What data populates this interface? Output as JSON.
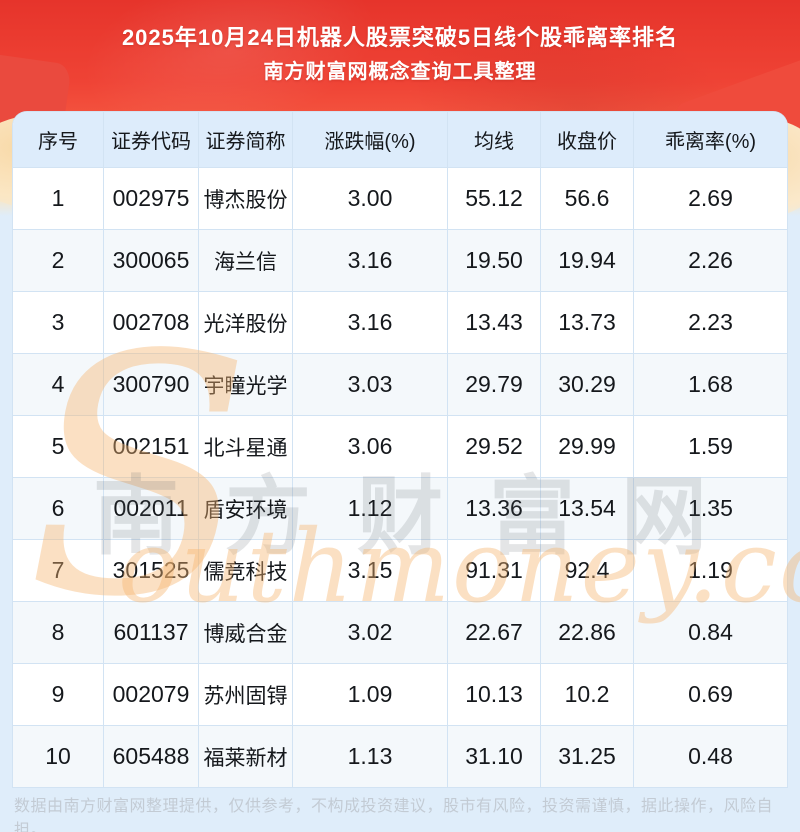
{
  "banner": {
    "title_line1": "2025年10月24日机器人股票突破5日线个股乖离率排名",
    "title_line2": "南方财富网概念查询工具整理"
  },
  "chart_data": {
    "type": "table",
    "title": "2025年10月24日机器人股票突破5日线个股乖离率排名",
    "subtitle": "南方财富网概念查询工具整理",
    "columns": [
      "序号",
      "证券代码",
      "证券简称",
      "涨跌幅(%)",
      "均线",
      "收盘价",
      "乖离率(%)"
    ],
    "rows": [
      [
        "1",
        "002975",
        "博杰股份",
        "3.00",
        "55.12",
        "56.6",
        "2.69"
      ],
      [
        "2",
        "300065",
        "海兰信",
        "3.16",
        "19.50",
        "19.94",
        "2.26"
      ],
      [
        "3",
        "002708",
        "光洋股份",
        "3.16",
        "13.43",
        "13.73",
        "2.23"
      ],
      [
        "4",
        "300790",
        "宇瞳光学",
        "3.03",
        "29.79",
        "30.29",
        "1.68"
      ],
      [
        "5",
        "002151",
        "北斗星通",
        "3.06",
        "29.52",
        "29.99",
        "1.59"
      ],
      [
        "6",
        "002011",
        "盾安环境",
        "1.12",
        "13.36",
        "13.54",
        "1.35"
      ],
      [
        "7",
        "301525",
        "儒竞科技",
        "3.15",
        "91.31",
        "92.4",
        "1.19"
      ],
      [
        "8",
        "601137",
        "博威合金",
        "3.02",
        "22.67",
        "22.86",
        "0.84"
      ],
      [
        "9",
        "002079",
        "苏州固锝",
        "1.09",
        "10.13",
        "10.2",
        "0.69"
      ],
      [
        "10",
        "605488",
        "福莱新材",
        "1.13",
        "31.10",
        "31.25",
        "0.48"
      ]
    ]
  },
  "watermark": {
    "cjk": "南方财富网",
    "latin_initial": "S",
    "latin_rest": "outhmoney.com"
  },
  "footer": {
    "disclaimer": "数据由南方财富网整理提供，仅供参考，不构成投资建议，股市有风险，投资需谨慎，据此操作，风险自担。"
  },
  "colors": {
    "banner_red": "#e6342b",
    "banner_red_mid": "#f4543f",
    "banner_peach": "#fdb58c",
    "banner_cream": "#fbe3bd",
    "page_bg": "#dfedfa",
    "header_row_bg": "#ddecfb",
    "row_alt_bg": "#f4f8fb",
    "grid_line": "#d2e3f3",
    "footer_text": "#c3cbd4"
  }
}
